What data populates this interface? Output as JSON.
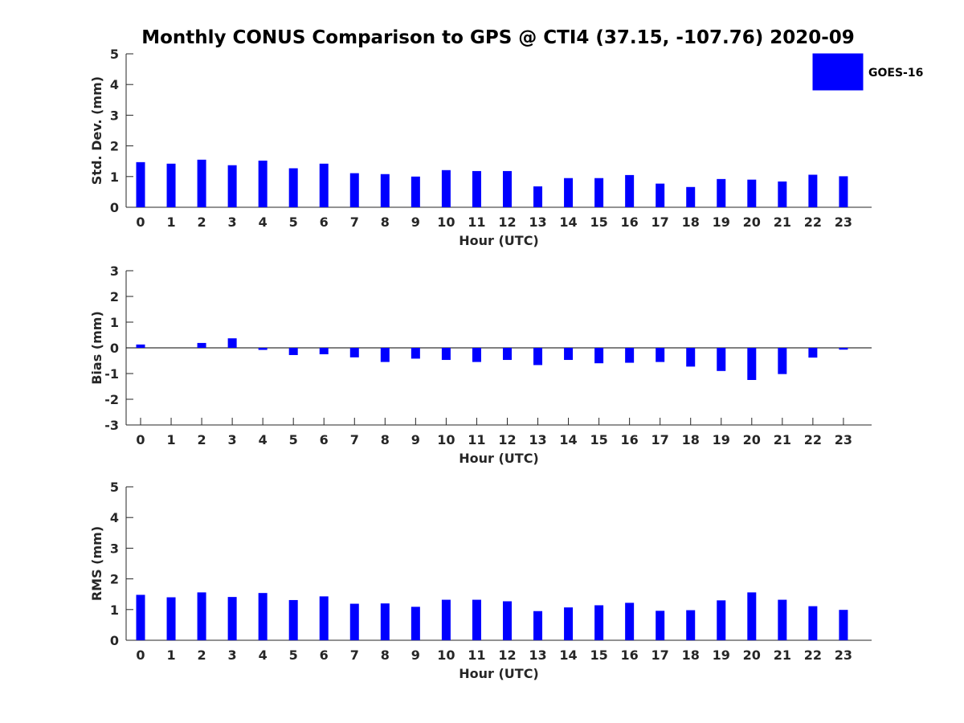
{
  "chart_data": [
    {
      "type": "bar",
      "title": "Monthly CONUS Comparison to GPS @ CTI4 (37.15, -107.76) 2020-09",
      "xlabel": "Hour (UTC)",
      "ylabel": "Std. Dev. (mm)",
      "ylim": [
        0,
        5
      ],
      "yticks": [
        0,
        1,
        2,
        3,
        4,
        5
      ],
      "categories": [
        "0",
        "1",
        "2",
        "3",
        "4",
        "5",
        "6",
        "7",
        "8",
        "9",
        "10",
        "11",
        "12",
        "13",
        "14",
        "15",
        "16",
        "17",
        "18",
        "19",
        "20",
        "21",
        "22",
        "23"
      ],
      "series": [
        {
          "name": "GOES-16",
          "color": "#0000ff",
          "values": [
            1.47,
            1.42,
            1.55,
            1.37,
            1.52,
            1.27,
            1.42,
            1.11,
            1.08,
            1.0,
            1.21,
            1.18,
            1.18,
            0.68,
            0.95,
            0.95,
            1.05,
            0.77,
            0.66,
            0.92,
            0.9,
            0.84,
            1.06,
            1.01
          ]
        }
      ],
      "legend": {
        "position": "top-right",
        "entries": [
          "GOES-16"
        ]
      }
    },
    {
      "type": "bar",
      "xlabel": "Hour (UTC)",
      "ylabel": "Bias (mm)",
      "ylim": [
        -3,
        3
      ],
      "yticks": [
        -3,
        -2,
        -1,
        0,
        1,
        2,
        3
      ],
      "categories": [
        "0",
        "1",
        "2",
        "3",
        "4",
        "5",
        "6",
        "7",
        "8",
        "9",
        "10",
        "11",
        "12",
        "13",
        "14",
        "15",
        "16",
        "17",
        "18",
        "19",
        "20",
        "21",
        "22",
        "23"
      ],
      "series": [
        {
          "name": "GOES-16",
          "color": "#0000ff",
          "values": [
            0.13,
            0.0,
            0.19,
            0.37,
            -0.08,
            -0.28,
            -0.25,
            -0.37,
            -0.55,
            -0.42,
            -0.47,
            -0.55,
            -0.47,
            -0.67,
            -0.47,
            -0.6,
            -0.58,
            -0.55,
            -0.73,
            -0.9,
            -1.25,
            -1.02,
            -0.38,
            -0.07
          ]
        }
      ],
      "zero_line": true
    },
    {
      "type": "bar",
      "xlabel": "Hour (UTC)",
      "ylabel": "RMS (mm)",
      "ylim": [
        0,
        5
      ],
      "yticks": [
        0,
        1,
        2,
        3,
        4,
        5
      ],
      "categories": [
        "0",
        "1",
        "2",
        "3",
        "4",
        "5",
        "6",
        "7",
        "8",
        "9",
        "10",
        "11",
        "12",
        "13",
        "14",
        "15",
        "16",
        "17",
        "18",
        "19",
        "20",
        "21",
        "22",
        "23"
      ],
      "series": [
        {
          "name": "GOES-16",
          "color": "#0000ff",
          "values": [
            1.48,
            1.4,
            1.56,
            1.41,
            1.54,
            1.31,
            1.43,
            1.19,
            1.2,
            1.09,
            1.32,
            1.32,
            1.27,
            0.95,
            1.07,
            1.14,
            1.22,
            0.96,
            0.98,
            1.3,
            1.56,
            1.32,
            1.11,
            0.99
          ]
        }
      ]
    }
  ]
}
